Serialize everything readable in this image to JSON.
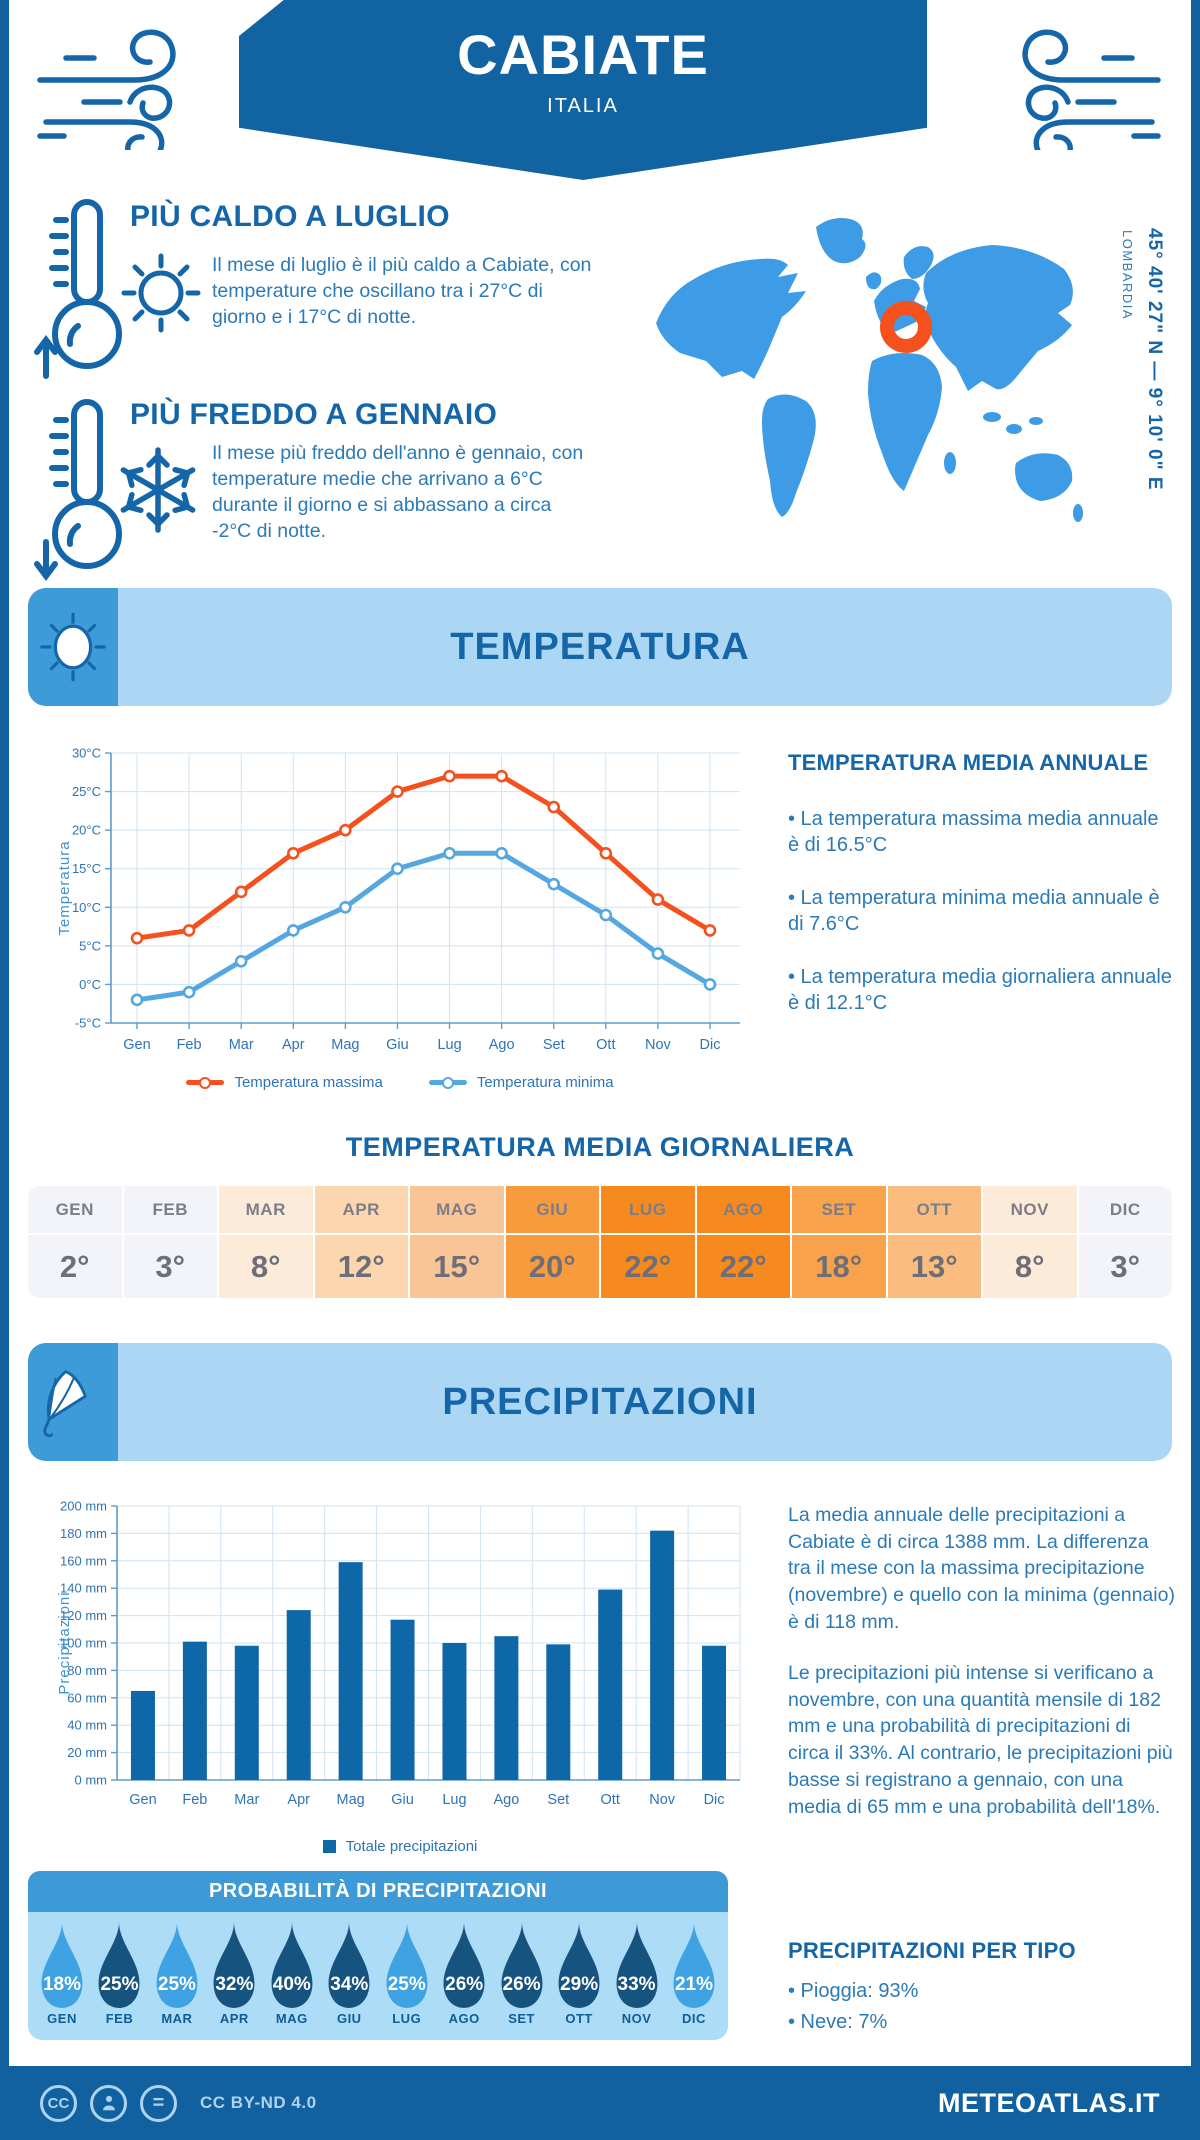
{
  "page": {
    "title": "CABIATE",
    "subtitle": "ITALIA",
    "coords": "45° 40' 27\" N — 9° 10' 0\" E",
    "region": "LOMBARDIA"
  },
  "highlights": {
    "hot": {
      "title": "PIÙ CALDO A LUGLIO",
      "text": "Il mese di luglio è il più caldo a Cabiate, con temperature che oscillano tra i 27°C di giorno e i 17°C di notte."
    },
    "cold": {
      "title": "PIÙ FREDDO A GENNAIO",
      "text": "Il mese più freddo dell'anno è gennaio, con temperature medie che arrivano a 6°C durante il giorno e si abbassano a circa -2°C di notte."
    }
  },
  "temperature_section": {
    "band_title": "TEMPERATURA",
    "annual": {
      "title": "TEMPERATURA MEDIA ANNUALE",
      "bullets": [
        "• La temperatura massima media annuale è di 16.5°C",
        "• La temperatura minima media annuale è di 7.6°C",
        "• La temperatura media giornaliera annuale è di 12.1°C"
      ]
    },
    "daily": {
      "title": "TEMPERATURA MEDIA GIORNALIERA",
      "months": [
        "GEN",
        "FEB",
        "MAR",
        "APR",
        "MAG",
        "GIU",
        "LUG",
        "AGO",
        "SET",
        "OTT",
        "NOV",
        "DIC"
      ],
      "values": [
        "2°",
        "3°",
        "8°",
        "12°",
        "15°",
        "20°",
        "22°",
        "22°",
        "18°",
        "13°",
        "8°",
        "3°"
      ],
      "cell_colors": [
        "#f3f3fa",
        "#f3f3fa",
        "#fcebd9",
        "#fbd6ae",
        "#fac596",
        "#f79b3d",
        "#f68a1f",
        "#f68a1f",
        "#f8a24c",
        "#fabd7f",
        "#fcebd9",
        "#f3f3fa"
      ]
    }
  },
  "precipitation_section": {
    "band_title": "PRECIPITAZIONI",
    "text1": "La media annuale delle precipitazioni a Cabiate è di circa 1388 mm. La differenza tra il mese con la massima precipitazione (novembre) e quello con la minima (gennaio) è di 118 mm.",
    "text2": "Le precipitazioni più intense si verificano a novembre, con una quantità mensile di 182 mm e una probabilità di precipitazioni di circa il 33%. Al contrario, le precipitazioni più basse si registrano a gennaio, con una media di 65 mm e una probabilità dell'18%.",
    "probability": {
      "title": "PROBABILITÀ DI PRECIPITAZIONI",
      "months": [
        "GEN",
        "FEB",
        "MAR",
        "APR",
        "MAG",
        "GIU",
        "LUG",
        "AGO",
        "SET",
        "OTT",
        "NOV",
        "DIC"
      ],
      "values": [
        "18%",
        "25%",
        "25%",
        "32%",
        "40%",
        "34%",
        "25%",
        "26%",
        "26%",
        "29%",
        "33%",
        "21%"
      ],
      "tones": [
        "light",
        "dark",
        "light",
        "dark",
        "dark",
        "dark",
        "light",
        "dark",
        "dark",
        "dark",
        "dark",
        "light"
      ],
      "drop_colors": {
        "light": "#3fa3e3",
        "dark": "#16537e"
      }
    },
    "per_tipo": {
      "title": "PRECIPITAZIONI PER TIPO",
      "bullets": [
        "• Pioggia: 93%",
        "• Neve: 7%"
      ]
    }
  },
  "footer": {
    "license": "CC BY-ND 4.0",
    "site": "METEOATLAS.IT"
  },
  "colors": {
    "primary_blue": "#1263a2",
    "heading_blue": "#1566a9",
    "body_blue": "#2b7ab8",
    "panel_light_blue": "#abd7f4",
    "icon_box_blue": "#3d9bd8",
    "map_blue": "#3d9ce5",
    "marker_orange": "#f4511e"
  },
  "chart_data": [
    {
      "type": "line",
      "x": [
        "Gen",
        "Feb",
        "Mar",
        "Apr",
        "Mag",
        "Giu",
        "Lug",
        "Ago",
        "Set",
        "Ott",
        "Nov",
        "Dic"
      ],
      "series": [
        {
          "name": "Temperatura massima",
          "values": [
            6,
            7,
            12,
            17,
            20,
            25,
            27,
            27,
            23,
            17,
            11,
            7
          ],
          "color": "#f4511e"
        },
        {
          "name": "Temperatura minima",
          "values": [
            -2,
            -1,
            3,
            7,
            10,
            15,
            17,
            17,
            13,
            9,
            4,
            0
          ],
          "color": "#54a7df"
        }
      ],
      "ylabel": "Temperatura",
      "ylim": [
        -5,
        30
      ],
      "ytick_step": 5,
      "y_unit": "°C",
      "grid": true,
      "legend_position": "bottom"
    },
    {
      "type": "bar",
      "categories": [
        "Gen",
        "Feb",
        "Mar",
        "Apr",
        "Mag",
        "Giu",
        "Lug",
        "Ago",
        "Set",
        "Ott",
        "Nov",
        "Dic"
      ],
      "values": [
        65,
        101,
        98,
        124,
        159,
        117,
        100,
        105,
        99,
        139,
        182,
        98
      ],
      "ylabel": "Precipitazioni",
      "ylim": [
        0,
        200
      ],
      "ytick_step": 20,
      "y_unit": " mm",
      "color": "#0e67a6",
      "legend": "Totale precipitazioni",
      "grid": true
    }
  ]
}
